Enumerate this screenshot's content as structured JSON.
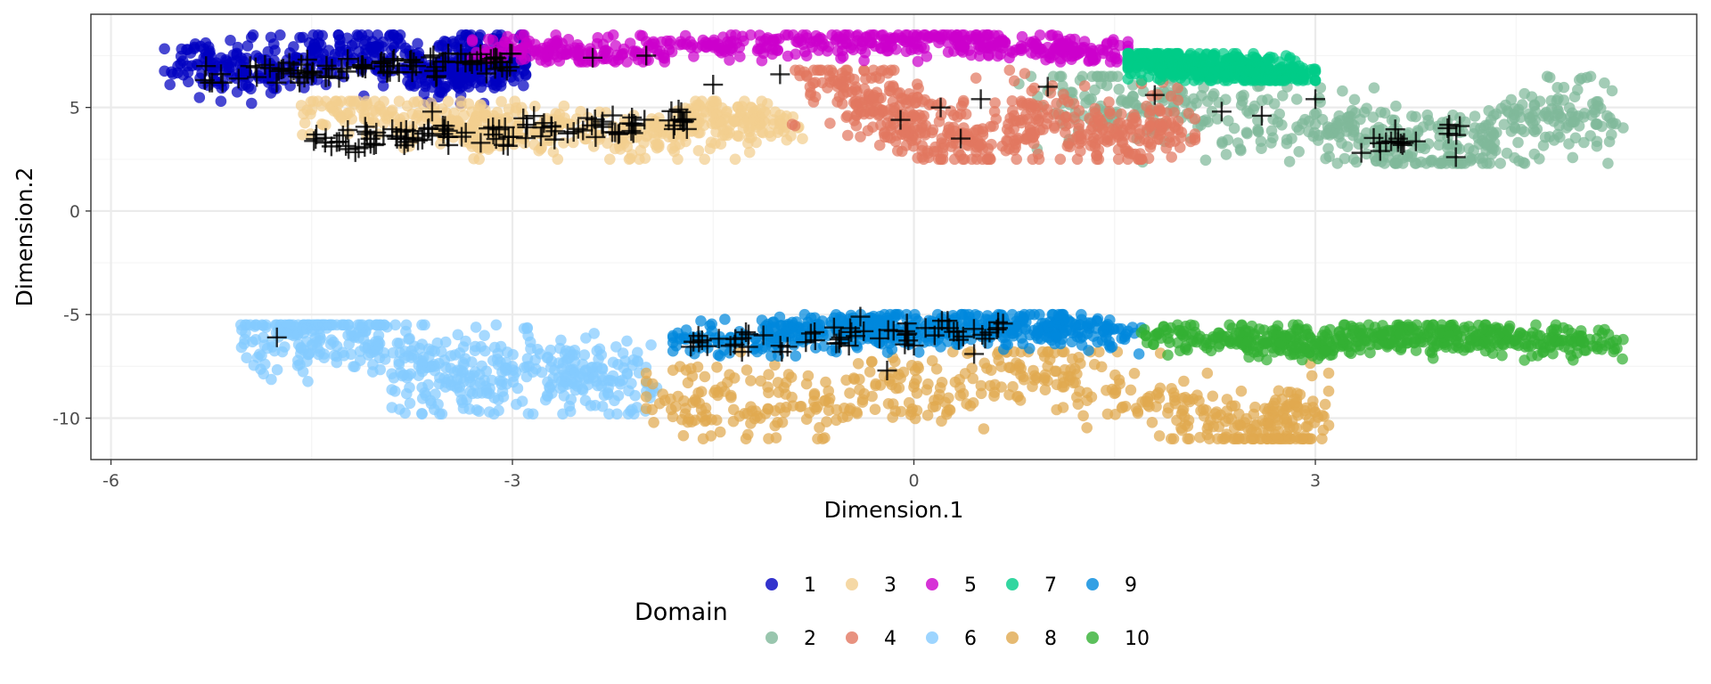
{
  "chart_data": {
    "type": "scatter",
    "title": "",
    "xlabel": "Dimension.1",
    "ylabel": "Dimension.2",
    "xlim": [
      -6.15,
      5.85
    ],
    "ylim": [
      -12.0,
      9.5
    ],
    "x_ticks": [
      -6,
      -3,
      0,
      3
    ],
    "y_ticks": [
      -10,
      -5,
      0,
      5
    ],
    "x_tick_labels": [
      "-6",
      "-3",
      "0",
      "3"
    ],
    "y_tick_labels": [
      "-10",
      "-5",
      "0",
      "5"
    ],
    "grid": true,
    "legend": {
      "title": "Domain",
      "placement": "bottom",
      "entries": [
        "1",
        "2",
        "3",
        "4",
        "5",
        "6",
        "7",
        "8",
        "9",
        "10"
      ]
    },
    "series": [
      {
        "name": "1",
        "color": "#0000C0",
        "approx_region": {
          "x": [
            -5.6,
            -2.9
          ],
          "y": [
            5.2,
            8.5
          ]
        },
        "sample_points": [
          [
            -5.5,
            7.0
          ],
          [
            -5.0,
            6.5
          ],
          [
            -4.5,
            7.3
          ],
          [
            -4.0,
            7.8
          ],
          [
            -3.5,
            6.6
          ],
          [
            -3.2,
            7.5
          ],
          [
            -3.0,
            6.9
          ]
        ]
      },
      {
        "name": "2",
        "color": "#7FB89A",
        "approx_region": {
          "x": [
            0.6,
            5.3
          ],
          "y": [
            2.3,
            6.5
          ]
        },
        "sample_points": [
          [
            1.0,
            5.8
          ],
          [
            2.0,
            4.5
          ],
          [
            3.0,
            4.2
          ],
          [
            3.5,
            3.5
          ],
          [
            4.0,
            2.6
          ],
          [
            4.6,
            4.5
          ],
          [
            5.2,
            4.5
          ]
        ]
      },
      {
        "name": "3",
        "color": "#F2CE8F",
        "approx_region": {
          "x": [
            -4.6,
            -0.8
          ],
          "y": [
            2.5,
            5.3
          ]
        },
        "sample_points": [
          [
            -4.5,
            4.9
          ],
          [
            -3.5,
            4.3
          ],
          [
            -3.0,
            3.8
          ],
          [
            -2.0,
            3.6
          ],
          [
            -1.5,
            4.5
          ],
          [
            -1.0,
            4.2
          ]
        ]
      },
      {
        "name": "4",
        "color": "#E27760",
        "approx_region": {
          "x": [
            -1.0,
            2.1
          ],
          "y": [
            2.5,
            6.8
          ]
        },
        "sample_points": [
          [
            -0.8,
            6.5
          ],
          [
            -0.3,
            5.5
          ],
          [
            0.0,
            4.0
          ],
          [
            0.5,
            3.2
          ],
          [
            1.0,
            4.5
          ],
          [
            1.5,
            3.8
          ],
          [
            2.0,
            3.8
          ]
        ]
      },
      {
        "name": "5",
        "color": "#CC00CC",
        "approx_region": {
          "x": [
            -3.3,
            1.6
          ],
          "y": [
            7.2,
            8.5
          ]
        },
        "sample_points": [
          [
            -3.2,
            7.8
          ],
          [
            -2.5,
            7.6
          ],
          [
            -1.5,
            8.0
          ],
          [
            -0.5,
            8.1
          ],
          [
            0.2,
            8.3
          ],
          [
            1.0,
            7.9
          ],
          [
            1.5,
            7.6
          ]
        ]
      },
      {
        "name": "7",
        "color": "#00CC88",
        "approx_region": {
          "x": [
            1.6,
            3.0
          ],
          "y": [
            6.3,
            7.6
          ]
        },
        "sample_points": [
          [
            1.7,
            7.3
          ],
          [
            2.0,
            7.0
          ],
          [
            2.5,
            6.8
          ],
          [
            2.9,
            6.6
          ]
        ]
      },
      {
        "name": "6",
        "color": "#84CAFF",
        "approx_region": {
          "x": [
            -5.1,
            -1.6
          ],
          "y": [
            -9.8,
            -5.5
          ]
        },
        "sample_points": [
          [
            -5.0,
            -6.2
          ],
          [
            -4.5,
            -5.8
          ],
          [
            -4.0,
            -6.0
          ],
          [
            -3.5,
            -8.5
          ],
          [
            -3.0,
            -7.5
          ],
          [
            -2.5,
            -8.0
          ],
          [
            -2.0,
            -8.3
          ]
        ]
      },
      {
        "name": "8",
        "color": "#E0A94F",
        "approx_region": {
          "x": [
            -2.0,
            3.1
          ],
          "y": [
            -11.0,
            -6.8
          ]
        },
        "sample_points": [
          [
            -1.9,
            -9.3
          ],
          [
            -1.0,
            -9.5
          ],
          [
            0.0,
            -8.5
          ],
          [
            1.0,
            -7.5
          ],
          [
            2.0,
            -9.8
          ],
          [
            2.7,
            -10.8
          ],
          [
            3.0,
            -9.7
          ]
        ]
      },
      {
        "name": "9",
        "color": "#0088DD",
        "approx_region": {
          "x": [
            -1.8,
            1.7
          ],
          "y": [
            -7.0,
            -5.0
          ]
        },
        "sample_points": [
          [
            -1.7,
            -6.2
          ],
          [
            -1.0,
            -6.0
          ],
          [
            -0.5,
            -5.6
          ],
          [
            0.0,
            -5.8
          ],
          [
            0.5,
            -5.5
          ],
          [
            1.0,
            -5.6
          ],
          [
            1.6,
            -5.8
          ]
        ]
      },
      {
        "name": "10",
        "color": "#33B033",
        "approx_region": {
          "x": [
            1.7,
            5.3
          ],
          "y": [
            -7.2,
            -5.5
          ]
        },
        "sample_points": [
          [
            1.8,
            -6.0
          ],
          [
            2.5,
            -6.3
          ],
          [
            3.0,
            -6.4
          ],
          [
            3.5,
            -6.0
          ],
          [
            4.0,
            -6.0
          ],
          [
            4.5,
            -6.2
          ],
          [
            5.2,
            -6.4
          ]
        ]
      }
    ],
    "cross_markers": {
      "color": "#000000",
      "sample_points": [
        [
          -4.76,
          -6.1
        ],
        [
          -0.2,
          -7.7
        ],
        [
          0.45,
          -6.9
        ],
        [
          0.0,
          -6.5
        ],
        [
          -0.4,
          -5.1
        ],
        [
          4.05,
          2.6
        ],
        [
          3.0,
          5.4
        ],
        [
          2.6,
          4.6
        ],
        [
          2.3,
          4.8
        ],
        [
          1.8,
          5.6
        ],
        [
          1.0,
          6.0
        ],
        [
          0.5,
          5.4
        ],
        [
          0.35,
          3.5
        ],
        [
          0.2,
          5.0
        ],
        [
          -0.1,
          4.4
        ],
        [
          -1.0,
          6.6
        ],
        [
          -2.0,
          7.5
        ],
        [
          -2.4,
          7.4
        ],
        [
          -1.5,
          6.1
        ],
        [
          -4.4,
          3.3
        ],
        [
          -3.6,
          4.8
        ]
      ]
    },
    "colors": {
      "panel_border": "#333333",
      "grid_major": "#EBEBEB",
      "grid_minor": "#F5F5F5",
      "tick_text": "#4D4D4D"
    }
  }
}
